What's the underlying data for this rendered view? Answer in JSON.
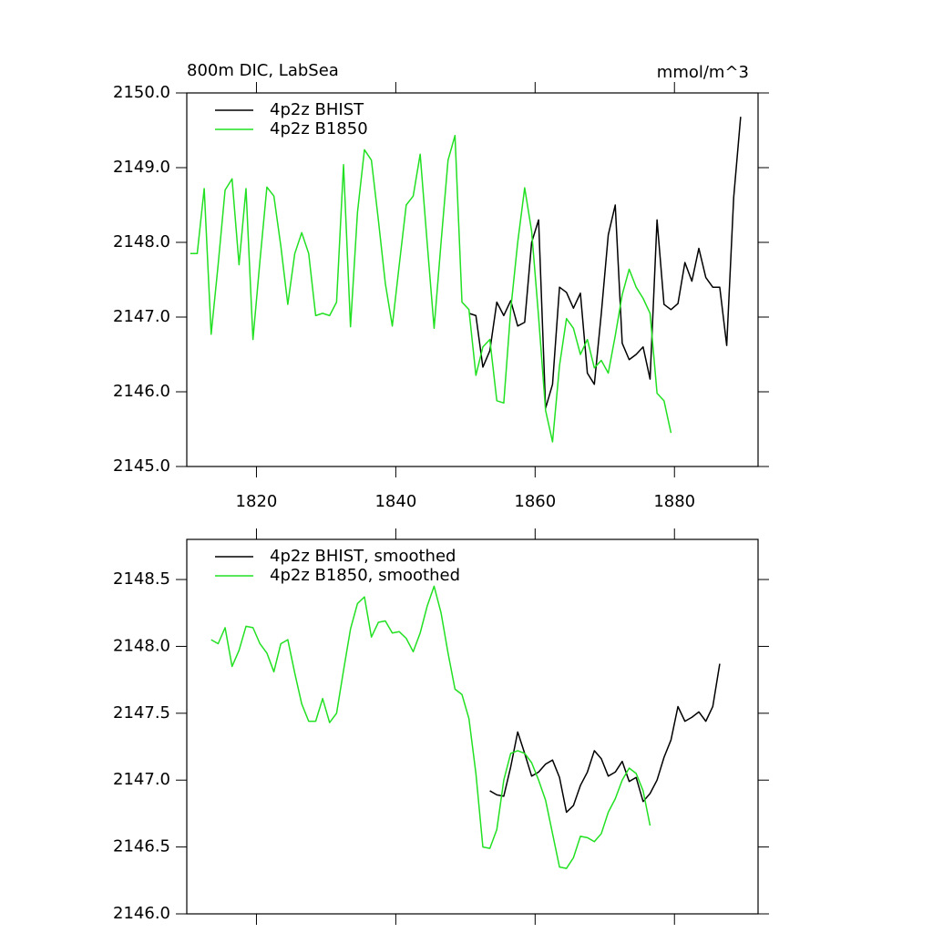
{
  "chart_data": [
    {
      "type": "line",
      "title": "800m DIC, LabSea",
      "units": "mmol/m^3",
      "xlim": [
        1810,
        1892
      ],
      "ylim": [
        2145,
        2150
      ],
      "xticks": [
        1820,
        1840,
        1860,
        1880
      ],
      "yticks": [
        {
          "value": 2145,
          "label": "2145.0"
        },
        {
          "value": 2146,
          "label": "2146.0"
        },
        {
          "value": 2147,
          "label": "2147.0"
        },
        {
          "value": 2148,
          "label": "2148.0"
        },
        {
          "value": 2149,
          "label": "2149.0"
        },
        {
          "value": 2150,
          "label": "2150.0"
        }
      ],
      "series": [
        {
          "name": "4p2z BHIST",
          "color": "#000000",
          "x": [
            1850.5,
            1851.5,
            1852.5,
            1853.5,
            1854.5,
            1855.5,
            1856.5,
            1857.5,
            1858.5,
            1859.5,
            1860.5,
            1861.5,
            1862.5,
            1863.5,
            1864.5,
            1865.5,
            1866.5,
            1867.5,
            1868.5,
            1869.5,
            1870.5,
            1871.5,
            1872.5,
            1873.5,
            1874.5,
            1875.5,
            1876.5,
            1877.5,
            1878.5,
            1879.5,
            1880.5,
            1881.5,
            1882.5,
            1883.5,
            1884.5,
            1885.5,
            1886.5,
            1887.5,
            1888.5,
            1889.5
          ],
          "values": [
            2147.05,
            2147.02,
            2146.33,
            2146.55,
            2147.2,
            2147.02,
            2147.22,
            2146.88,
            2146.93,
            2148.0,
            2148.3,
            2145.78,
            2146.1,
            2147.4,
            2147.33,
            2147.12,
            2147.32,
            2146.25,
            2146.1,
            2147.05,
            2148.1,
            2148.5,
            2146.65,
            2146.43,
            2146.5,
            2146.6,
            2146.17,
            2148.3,
            2147.17,
            2147.1,
            2147.18,
            2147.73,
            2147.48,
            2147.92,
            2147.53,
            2147.4,
            2147.4,
            2146.62,
            2148.6,
            2149.68
          ]
        },
        {
          "name": "4p2z B1850",
          "color": "#22e022",
          "x": [
            1810.5,
            1811.5,
            1812.5,
            1813.5,
            1814.5,
            1815.5,
            1816.5,
            1817.5,
            1818.5,
            1819.5,
            1820.5,
            1821.5,
            1822.5,
            1823.5,
            1824.5,
            1825.5,
            1826.5,
            1827.5,
            1828.5,
            1829.5,
            1830.5,
            1831.5,
            1832.5,
            1833.5,
            1834.5,
            1835.5,
            1836.5,
            1837.5,
            1838.5,
            1839.5,
            1840.5,
            1841.5,
            1842.5,
            1843.5,
            1844.5,
            1845.5,
            1846.5,
            1847.5,
            1848.5,
            1849.5,
            1850.5,
            1851.5,
            1852.5,
            1853.5,
            1854.5,
            1855.5,
            1856.5,
            1857.5,
            1858.5,
            1859.5,
            1860.5,
            1861.5,
            1862.5,
            1863.5,
            1864.5,
            1865.5,
            1866.5,
            1867.5,
            1868.5,
            1869.5,
            1870.5,
            1871.5,
            1872.5,
            1873.5,
            1874.5,
            1875.5,
            1876.5,
            1877.5,
            1878.5,
            1879.5
          ],
          "values": [
            2147.85,
            2147.85,
            2148.72,
            2146.77,
            2147.7,
            2148.7,
            2148.85,
            2147.7,
            2148.72,
            2146.7,
            2147.75,
            2148.74,
            2148.62,
            2147.95,
            2147.17,
            2147.85,
            2148.13,
            2147.85,
            2147.02,
            2147.05,
            2147.02,
            2147.2,
            2149.04,
            2146.87,
            2148.4,
            2149.24,
            2149.1,
            2148.3,
            2147.45,
            2146.88,
            2147.7,
            2148.5,
            2148.62,
            2149.18,
            2148.0,
            2146.85,
            2148.0,
            2149.1,
            2149.43,
            2147.2,
            2147.1,
            2146.22,
            2146.6,
            2146.7,
            2145.88,
            2145.85,
            2147.1,
            2148.0,
            2148.73,
            2148.15,
            2147.0,
            2145.75,
            2145.33,
            2146.35,
            2146.98,
            2146.85,
            2146.5,
            2146.7,
            2146.32,
            2146.42,
            2146.25,
            2146.75,
            2147.3,
            2147.64,
            2147.4,
            2147.25,
            2147.05,
            2145.98,
            2145.88,
            2145.45
          ]
        }
      ]
    },
    {
      "type": "line",
      "xlim": [
        1810,
        1892
      ],
      "ylim": [
        2146,
        2148.8
      ],
      "yticks": [
        {
          "value": 2146,
          "label": "2146.0"
        },
        2146.5,
        {
          "value": 2147,
          "label": "2147.0"
        },
        2147.5,
        {
          "value": 2148,
          "label": "2148.0"
        },
        2148.5
      ],
      "series": [
        {
          "name": "4p2z BHIST, smoothed",
          "color": "#000000",
          "x": [
            1853.5,
            1854.5,
            1855.5,
            1856.5,
            1857.5,
            1858.5,
            1859.5,
            1860.5,
            1861.5,
            1862.5,
            1863.5,
            1864.5,
            1865.5,
            1866.5,
            1867.5,
            1868.5,
            1869.5,
            1870.5,
            1871.5,
            1872.5,
            1873.5,
            1874.5,
            1875.5,
            1876.5,
            1877.5,
            1878.5,
            1879.5,
            1880.5,
            1881.5,
            1882.5,
            1883.5,
            1884.5,
            1885.5,
            1886.5
          ],
          "values": [
            2146.92,
            2146.89,
            2146.88,
            2147.1,
            2147.36,
            2147.2,
            2147.03,
            2147.06,
            2147.12,
            2147.15,
            2147.02,
            2146.76,
            2146.81,
            2146.96,
            2147.06,
            2147.22,
            2147.16,
            2147.03,
            2147.06,
            2147.14,
            2146.99,
            2147.02,
            2146.84,
            2146.9,
            2147.0,
            2147.17,
            2147.3,
            2147.55,
            2147.44,
            2147.47,
            2147.51,
            2147.44,
            2147.55,
            2147.87
          ]
        },
        {
          "name": "4p2z B1850, smoothed",
          "color": "#22e022",
          "x": [
            1813.5,
            1814.5,
            1815.5,
            1816.5,
            1817.5,
            1818.5,
            1819.5,
            1820.5,
            1821.5,
            1822.5,
            1823.5,
            1824.5,
            1825.5,
            1826.5,
            1827.5,
            1828.5,
            1829.5,
            1830.5,
            1831.5,
            1832.5,
            1833.5,
            1834.5,
            1835.5,
            1836.5,
            1837.5,
            1838.5,
            1839.5,
            1840.5,
            1841.5,
            1842.5,
            1843.5,
            1844.5,
            1845.5,
            1846.5,
            1847.5,
            1848.5,
            1849.5,
            1850.5,
            1851.5,
            1852.5,
            1853.5,
            1854.5,
            1855.5,
            1856.5,
            1857.5,
            1858.5,
            1859.5,
            1860.5,
            1861.5,
            1862.5,
            1863.5,
            1864.5,
            1865.5,
            1866.5,
            1867.5,
            1868.5,
            1869.5,
            1870.5,
            1871.5,
            1872.5,
            1873.5,
            1874.5,
            1875.5,
            1876.5
          ],
          "values": [
            2148.05,
            2148.02,
            2148.14,
            2147.85,
            2147.97,
            2148.15,
            2148.14,
            2148.02,
            2147.95,
            2147.81,
            2148.02,
            2148.05,
            2147.8,
            2147.57,
            2147.44,
            2147.44,
            2147.61,
            2147.43,
            2147.5,
            2147.82,
            2148.13,
            2148.32,
            2148.37,
            2148.07,
            2148.18,
            2148.19,
            2148.1,
            2148.11,
            2148.06,
            2147.96,
            2148.1,
            2148.3,
            2148.45,
            2148.25,
            2147.95,
            2147.68,
            2147.64,
            2147.46,
            2147.05,
            2146.5,
            2146.49,
            2146.63,
            2147.0,
            2147.2,
            2147.22,
            2147.2,
            2147.13,
            2147.0,
            2146.85,
            2146.6,
            2146.35,
            2146.34,
            2146.42,
            2146.58,
            2146.57,
            2146.54,
            2146.6,
            2146.76,
            2146.86,
            2147.0,
            2147.09,
            2147.05,
            2146.92,
            2146.66
          ]
        }
      ]
    }
  ]
}
